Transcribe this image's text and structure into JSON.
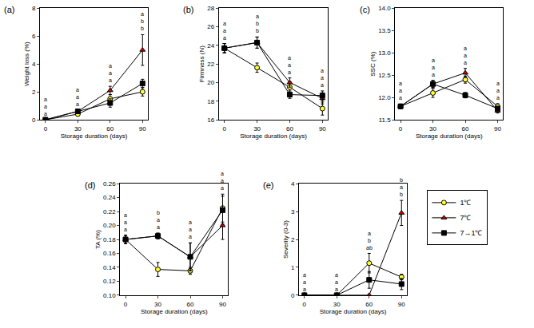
{
  "chart_data": [
    {
      "type": "line",
      "title": "(a)",
      "x_label": "Storage duration (days)",
      "y_label": "Weight loss (%)",
      "x": [
        0,
        30,
        60,
        90
      ],
      "xlim": [
        -5,
        95
      ],
      "xticks": [
        0,
        30,
        60,
        90
      ],
      "ylim": [
        0,
        8
      ],
      "yticks": [
        0,
        2,
        4,
        6,
        8
      ],
      "legend": "right",
      "series": [
        {
          "name": "1℃",
          "color": "#ffff33",
          "marker": "circle",
          "values": [
            0,
            0.4,
            1.5,
            2.0
          ],
          "errors": [
            0,
            0.1,
            0.3,
            0.3
          ]
        },
        {
          "name": "7℃",
          "color": "#dd0000",
          "marker": "triangle-up",
          "values": [
            0,
            0.6,
            2.1,
            5.0
          ],
          "errors": [
            0,
            0.1,
            0.3,
            1.1
          ]
        },
        {
          "name": "7→1℃",
          "color": "#000000",
          "marker": "square",
          "values": [
            0,
            0.6,
            1.2,
            2.6
          ],
          "errors": [
            0,
            0.1,
            0.3,
            0.3
          ]
        }
      ],
      "letters": [
        [
          "a",
          "a",
          "a"
        ],
        [
          "a",
          "a",
          "a"
        ],
        [
          "a",
          "a",
          "a"
        ],
        [
          "a",
          "b",
          "b"
        ]
      ]
    },
    {
      "type": "line",
      "title": "(b)",
      "x_label": "Storage duration (days)",
      "y_label": "Firmness (N)",
      "x": [
        0,
        30,
        60,
        90
      ],
      "xlim": [
        -5,
        95
      ],
      "xticks": [
        0,
        30,
        60,
        90
      ],
      "ylim": [
        16,
        28
      ],
      "yticks": [
        16,
        18,
        20,
        22,
        24,
        26,
        28
      ],
      "series": [
        {
          "name": "1℃",
          "color": "#ffff33",
          "marker": "circle",
          "values": [
            23.7,
            21.6,
            19.5,
            17.2
          ],
          "errors": [
            0.5,
            0.5,
            0.6,
            0.7
          ]
        },
        {
          "name": "7℃",
          "color": "#dd0000",
          "marker": "triangle-up",
          "values": [
            23.7,
            24.3,
            20.0,
            18.3
          ],
          "errors": [
            0.5,
            0.6,
            0.5,
            0.6
          ]
        },
        {
          "name": "7→1℃",
          "color": "#000000",
          "marker": "square",
          "values": [
            23.7,
            24.3,
            18.7,
            18.6
          ],
          "errors": [
            0.5,
            0.6,
            0.4,
            0.5
          ]
        }
      ],
      "letters": [
        [
          "a",
          "a",
          "a"
        ],
        [
          "a",
          "b",
          "b"
        ],
        [
          "a",
          "a",
          "a"
        ],
        [
          "a",
          "a",
          "a"
        ]
      ]
    },
    {
      "type": "line",
      "title": "(c)",
      "x_label": "Storage duration (days)",
      "y_label": "SSC (%)",
      "x": [
        0,
        30,
        60,
        90
      ],
      "xlim": [
        -5,
        95
      ],
      "xticks": [
        0,
        30,
        60,
        90
      ],
      "ylim": [
        11.5,
        14.0
      ],
      "yticks": [
        11.5,
        {
          "value": 12,
          "label": "12.0"
        },
        12.5,
        {
          "value": 13,
          "label": "13.0"
        },
        13.5,
        {
          "value": 14,
          "label": "14.0"
        }
      ],
      "series": [
        {
          "name": "1℃",
          "color": "#ffff33",
          "marker": "circle",
          "values": [
            11.8,
            12.1,
            12.4,
            11.8
          ],
          "errors": [
            0.05,
            0.1,
            0.08,
            0.06
          ]
        },
        {
          "name": "7℃",
          "color": "#dd0000",
          "marker": "triangle-up",
          "values": [
            11.8,
            12.3,
            12.55,
            11.7
          ],
          "errors": [
            0.05,
            0.08,
            0.1,
            0.05
          ]
        },
        {
          "name": "7→1℃",
          "color": "#000000",
          "marker": "square",
          "values": [
            11.8,
            12.3,
            12.05,
            11.75
          ],
          "errors": [
            0.05,
            0.08,
            0.06,
            0.05
          ]
        }
      ],
      "letters": [
        [
          "a",
          "a",
          "a"
        ],
        [
          "a",
          "a",
          "a"
        ],
        [
          "a",
          "a",
          "a"
        ],
        [
          "a",
          "a",
          "a"
        ]
      ]
    },
    {
      "type": "line",
      "title": "(d)",
      "x_label": "Storage duration (days)",
      "y_label": "TA (%)",
      "x": [
        0,
        30,
        60,
        90
      ],
      "xlim": [
        -5,
        95
      ],
      "xticks": [
        0,
        30,
        60,
        90
      ],
      "ylim": [
        0.1,
        0.26
      ],
      "yticks": [
        {
          "value": 0.1,
          "label": "0.10"
        },
        0.12,
        0.14,
        0.16,
        0.18,
        {
          "value": 0.2,
          "label": "0.20"
        },
        0.22,
        0.24,
        0.26
      ],
      "series": [
        {
          "name": "1℃",
          "color": "#ffff33",
          "marker": "circle",
          "values": [
            0.18,
            0.137,
            0.135,
            0.225
          ],
          "errors": [
            0.006,
            0.01,
            0.005,
            0.02
          ]
        },
        {
          "name": "7℃",
          "color": "#dd0000",
          "marker": "triangle-up",
          "values": [
            0.18,
            0.185,
            0.155,
            0.2
          ],
          "errors": [
            0.006,
            0.004,
            0.02,
            0.02
          ]
        },
        {
          "name": "7→1℃",
          "color": "#000000",
          "marker": "square",
          "values": [
            0.18,
            0.185,
            0.155,
            0.222
          ],
          "errors": [
            0.006,
            0.004,
            0.02,
            0.02
          ]
        }
      ],
      "letters": [
        [
          "a",
          "a",
          "a"
        ],
        [
          "b",
          "a",
          "a"
        ],
        [
          "a",
          "a",
          "a"
        ],
        [
          "a",
          "a",
          "a"
        ]
      ]
    },
    {
      "type": "line",
      "title": "(e)",
      "x_label": "Storage duration (days)",
      "y_label": "Severity (0-3)",
      "x": [
        0,
        30,
        60,
        90
      ],
      "xlim": [
        -5,
        95
      ],
      "xticks": [
        0,
        30,
        60,
        90
      ],
      "ylim": [
        0,
        4
      ],
      "yticks": [
        0,
        1,
        2,
        3,
        4
      ],
      "series": [
        {
          "name": "1℃",
          "color": "#ffff33",
          "marker": "circle",
          "values": [
            0,
            0,
            1.15,
            0.65
          ],
          "errors": [
            0,
            0,
            0.35,
            0.1
          ]
        },
        {
          "name": "7℃",
          "color": "#dd0000",
          "marker": "triangle-up",
          "values": [
            0,
            0,
            0,
            2.95
          ],
          "errors": [
            0,
            0,
            0,
            0.45
          ]
        },
        {
          "name": "7→1℃",
          "color": "#000000",
          "marker": "square",
          "values": [
            0,
            0,
            0.55,
            0.4
          ],
          "errors": [
            0,
            0,
            0.3,
            0.2
          ]
        }
      ],
      "letters": [
        [
          "a",
          "a",
          "a"
        ],
        [
          "a",
          "a",
          "a"
        ],
        [
          "a",
          "b",
          "ab"
        ],
        [
          "b",
          "a",
          "b"
        ]
      ]
    }
  ]
}
